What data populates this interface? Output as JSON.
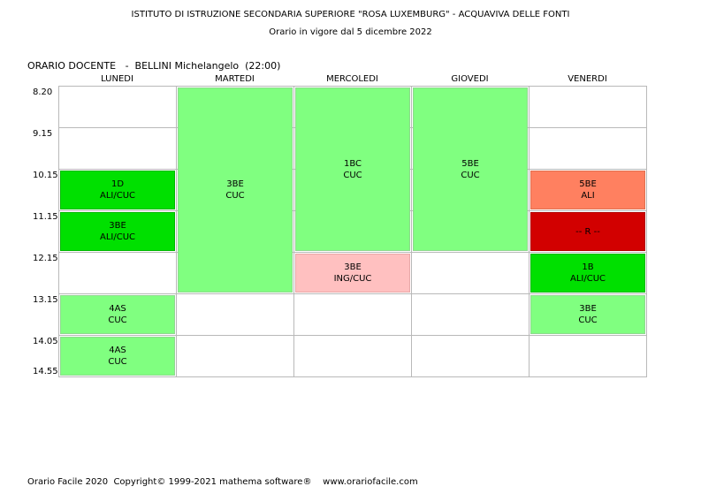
{
  "header": {
    "school": "ISTITUTO DI ISTRUZIONE SECONDARIA SUPERIORE \"ROSA LUXEMBURG\" - ACQUAVIVA DELLE FONTI",
    "validity": "Orario in vigore dal 5 dicembre 2022"
  },
  "teacher_line": "ORARIO DOCENTE   -  BELLINI Michelangelo  (22:00)",
  "days": [
    "LUNEDI",
    "MARTEDI",
    "MERCOLEDI",
    "GIOVEDI",
    "VENERDI"
  ],
  "times": [
    "8.20",
    "9.15",
    "10.15",
    "11.15",
    "12.15",
    "13.15",
    "14.05",
    "14.55"
  ],
  "colors": {
    "light_green": "#80ff80",
    "bright_green": "#00e000",
    "pink": "#ffc0c0",
    "salmon": "#ff8060",
    "red": "#d20000",
    "grid_border": "#b9b9b9"
  },
  "lessons": [
    {
      "day": 0,
      "start_slot": 2,
      "slots": 1,
      "class": "1D",
      "subject": "ALI/CUC",
      "color": "bright_green"
    },
    {
      "day": 0,
      "start_slot": 3,
      "slots": 1,
      "class": "3BE",
      "subject": "ALI/CUC",
      "color": "bright_green"
    },
    {
      "day": 0,
      "start_slot": 5,
      "slots": 1,
      "class": "4AS",
      "subject": "CUC",
      "color": "light_green"
    },
    {
      "day": 0,
      "start_slot": 6,
      "slots": 1,
      "class": "4AS",
      "subject": "CUC",
      "color": "light_green"
    },
    {
      "day": 1,
      "start_slot": 0,
      "slots": 5,
      "class": "3BE",
      "subject": "CUC",
      "color": "light_green"
    },
    {
      "day": 2,
      "start_slot": 0,
      "slots": 4,
      "class": "1BC",
      "subject": "CUC",
      "color": "light_green"
    },
    {
      "day": 2,
      "start_slot": 4,
      "slots": 1,
      "class": "3BE",
      "subject": "ING/CUC",
      "color": "pink"
    },
    {
      "day": 3,
      "start_slot": 0,
      "slots": 4,
      "class": "5BE",
      "subject": "CUC",
      "color": "light_green"
    },
    {
      "day": 4,
      "start_slot": 2,
      "slots": 1,
      "class": "5BE",
      "subject": "ALI",
      "color": "salmon"
    },
    {
      "day": 4,
      "start_slot": 3,
      "slots": 1,
      "class": "-- R --",
      "subject": "",
      "color": "red"
    },
    {
      "day": 4,
      "start_slot": 4,
      "slots": 1,
      "class": "1B",
      "subject": "ALI/CUC",
      "color": "bright_green"
    },
    {
      "day": 4,
      "start_slot": 5,
      "slots": 1,
      "class": "3BE",
      "subject": "CUC",
      "color": "light_green"
    }
  ],
  "footer": "Orario Facile 2020  Copyright© 1999-2021 mathema software®    www.orariofacile.com"
}
